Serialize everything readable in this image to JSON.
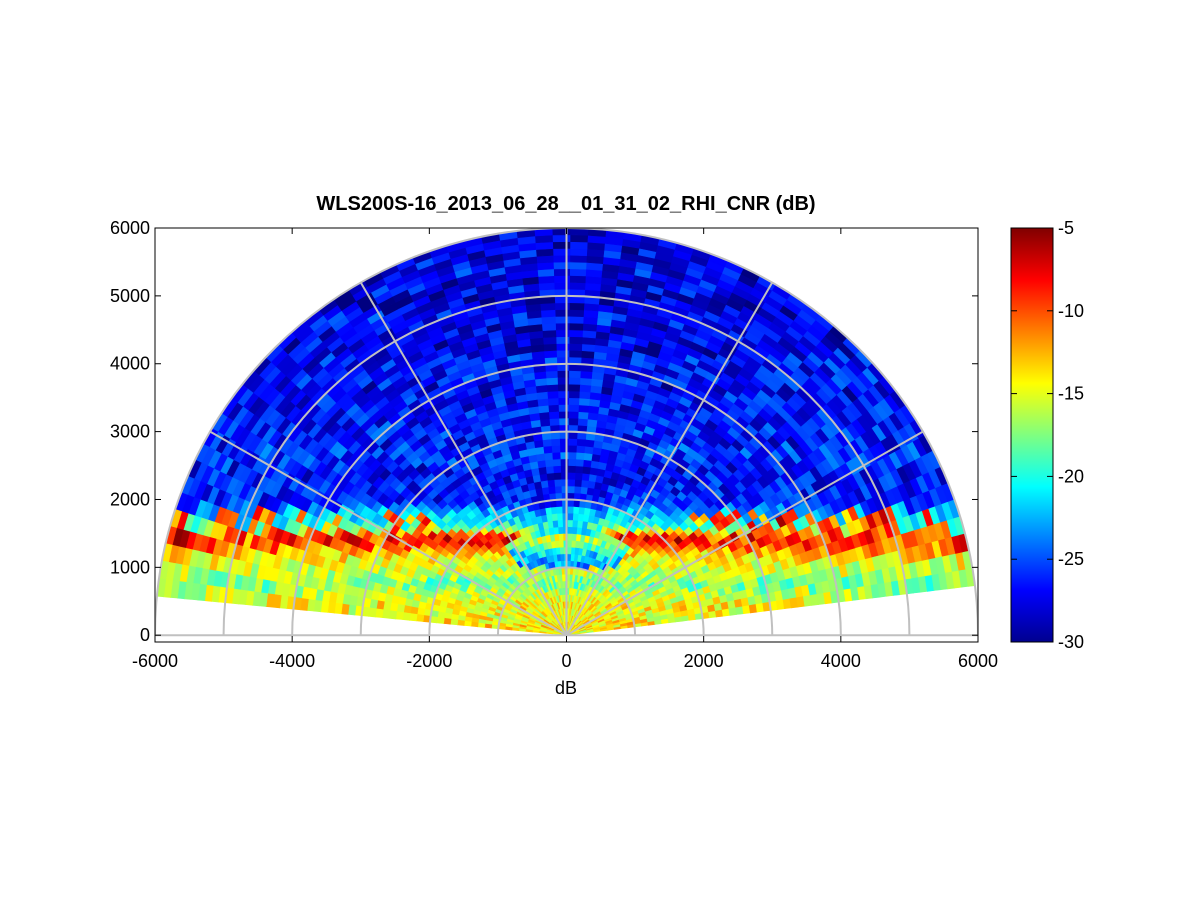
{
  "chart_data": {
    "type": "heatmap",
    "subtype": "polar-rhi-sector",
    "title": "WLS200S-16_2013_06_28__01_31_02_RHI_CNR (dB)",
    "xlabel": "dB",
    "ylabel": "",
    "xlim": [
      -6000,
      6000
    ],
    "ylim": [
      -100,
      6000
    ],
    "x_ticks": [
      "-6000",
      "-4000",
      "-2000",
      "0",
      "2000",
      "4000",
      "6000"
    ],
    "y_ticks": [
      "0",
      "1000",
      "2000",
      "3000",
      "4000",
      "5000",
      "6000"
    ],
    "x_tick_values": [
      -6000,
      -4000,
      -2000,
      0,
      2000,
      4000,
      6000
    ],
    "y_tick_values": [
      0,
      1000,
      2000,
      3000,
      4000,
      5000,
      6000
    ],
    "polar_grid": {
      "range_rings": [
        1000,
        2000,
        3000,
        4000,
        5000,
        6000
      ],
      "spoke_angles_deg": [
        0,
        30,
        60,
        90,
        120,
        150,
        180
      ],
      "color": "#c0c0c0"
    },
    "scan": {
      "elevation_min_deg": 7,
      "elevation_max_deg": 173,
      "max_range": 5950,
      "low_cnr_gap_range": [
        1000,
        1600
      ],
      "boundary_layer_height": 1550
    },
    "colorbar": {
      "colormap": "jet",
      "clim": [
        -30,
        -5
      ],
      "ticks": [
        "-5",
        "-10",
        "-15",
        "-20",
        "-25",
        "-30"
      ],
      "tick_values": [
        -5,
        -10,
        -15,
        -20,
        -25,
        -30
      ]
    },
    "cnr_profile_by_height": [
      {
        "height": 0,
        "cnr": -14
      },
      {
        "height": 400,
        "cnr": -15
      },
      {
        "height": 800,
        "cnr": -17
      },
      {
        "height": 1200,
        "cnr": -13
      },
      {
        "height": 1450,
        "cnr": -7
      },
      {
        "height": 1600,
        "cnr": -20
      },
      {
        "height": 2000,
        "cnr": -26
      },
      {
        "height": 4000,
        "cnr": -27
      },
      {
        "height": 6000,
        "cnr": -28
      }
    ]
  }
}
